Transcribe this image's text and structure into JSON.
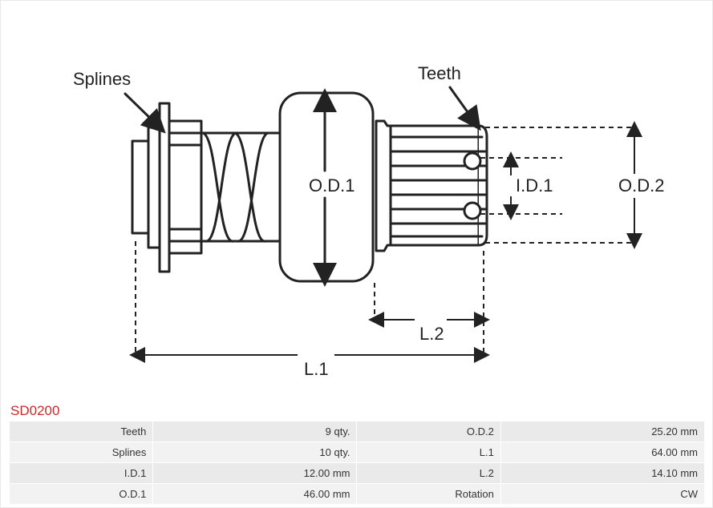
{
  "part_code": "SD0200",
  "part_code_color": "#c72b2b",
  "labels": {
    "splines": "Splines",
    "teeth": "Teeth",
    "od1": "O.D.1",
    "od2": "O.D.2",
    "id1": "I.D.1",
    "l1": "L.1",
    "l2": "L.2"
  },
  "diagram": {
    "stroke": "#222222",
    "stroke_width": 3,
    "dash": "6,5",
    "font_family": "Arial, sans-serif",
    "label_font_size": 22
  },
  "spec_rows": [
    {
      "k1": "Teeth",
      "v1": "9 qty.",
      "k2": "O.D.2",
      "v2": "25.20 mm"
    },
    {
      "k1": "Splines",
      "v1": "10 qty.",
      "k2": "L.1",
      "v2": "64.00 mm"
    },
    {
      "k1": "I.D.1",
      "v1": "12.00 mm",
      "k2": "L.2",
      "v2": "14.10 mm"
    },
    {
      "k1": "O.D.1",
      "v1": "46.00 mm",
      "k2": "Rotation",
      "v2": "CW"
    }
  ],
  "table_style": {
    "row_alt_bg_a": "#eaeaea",
    "row_alt_bg_b": "#f2f2f2",
    "label_col_width": 175,
    "value_col_width": 248,
    "font_size": 13
  }
}
